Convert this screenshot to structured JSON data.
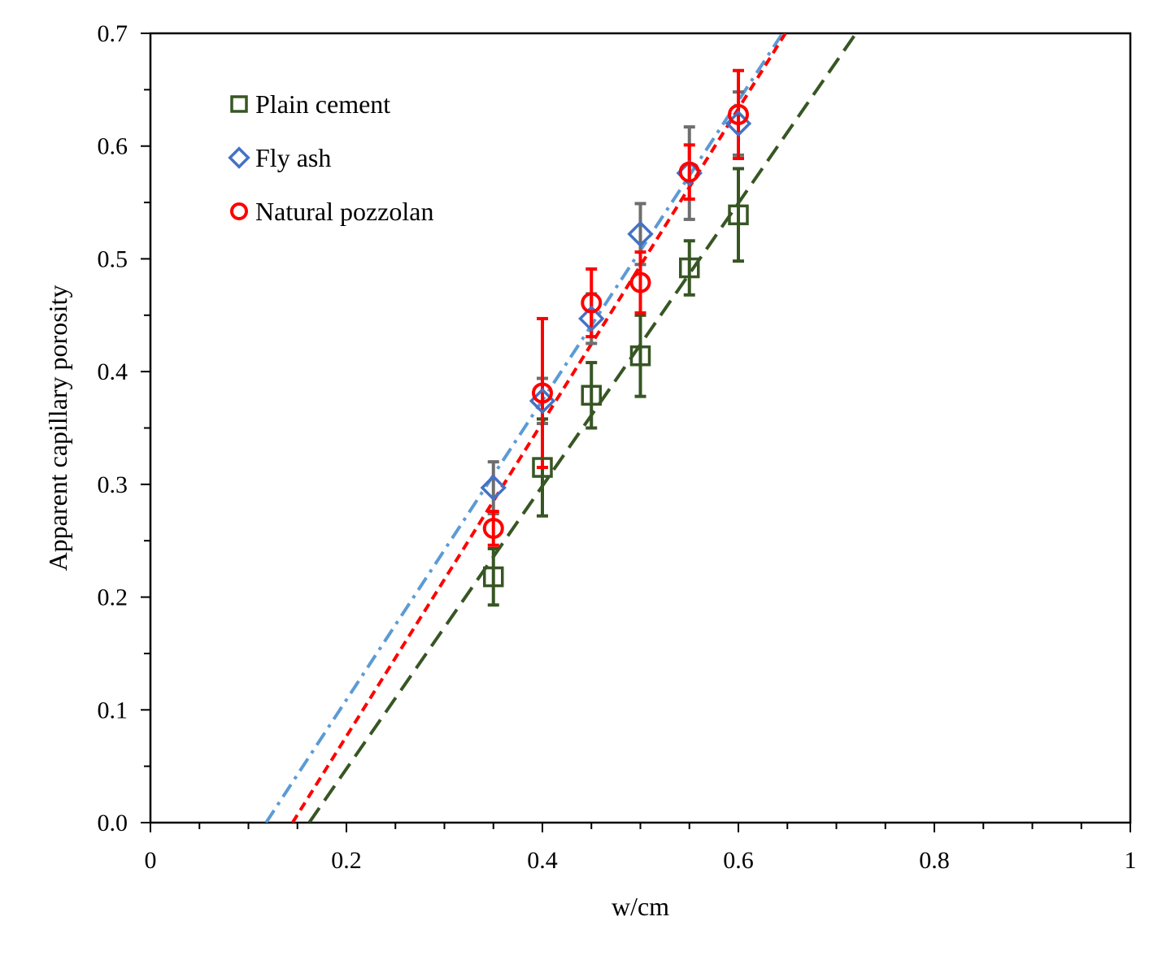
{
  "chart_data": {
    "type": "scatter",
    "title": "",
    "xlabel": "w/cm",
    "ylabel": "Apparent capillary porosity",
    "xlim": [
      0,
      1
    ],
    "ylim": [
      0,
      0.7
    ],
    "x_ticks": [
      0,
      0.2,
      0.4,
      0.6,
      0.8,
      1
    ],
    "x_tick_labels": [
      "0",
      "0.2",
      "0.4",
      "0.6",
      "0.8",
      "1"
    ],
    "y_ticks": [
      0,
      0.1,
      0.2,
      0.3,
      0.4,
      0.5,
      0.6,
      0.7
    ],
    "y_tick_labels": [
      "0.0",
      "0.1",
      "0.2",
      "0.3",
      "0.4",
      "0.5",
      "0.6",
      "0.7"
    ],
    "grid": false,
    "legend_position": "top-left",
    "series": [
      {
        "name": "Plain cement",
        "marker": "square",
        "color": "#375623",
        "x": [
          0.35,
          0.4,
          0.45,
          0.5,
          0.55,
          0.6
        ],
        "y": [
          0.218,
          0.315,
          0.379,
          0.414,
          0.492,
          0.539
        ],
        "error": [
          0.025,
          0.043,
          0.029,
          0.036,
          0.024,
          0.041
        ],
        "trendline": {
          "x": [
            0.162,
            0.72
          ],
          "y": [
            0.0,
            0.7
          ],
          "style": "dashed"
        }
      },
      {
        "name": "Fly ash",
        "marker": "diamond",
        "color": "#4472C4",
        "error_color": "#6E6E6E",
        "trend_color": "#5B9BD5",
        "x": [
          0.35,
          0.4,
          0.45,
          0.5,
          0.55,
          0.6
        ],
        "y": [
          0.297,
          0.374,
          0.447,
          0.522,
          0.576,
          0.62
        ],
        "error": [
          0.023,
          0.02,
          0.022,
          0.027,
          0.041,
          0.028
        ],
        "trendline": {
          "x": [
            0.118,
            0.645
          ],
          "y": [
            0.0,
            0.7
          ],
          "style": "dash-dot"
        }
      },
      {
        "name": "Natural pozzolan",
        "marker": "circle",
        "color": "#FF0000",
        "x": [
          0.35,
          0.4,
          0.45,
          0.5,
          0.55,
          0.6
        ],
        "y": [
          0.261,
          0.381,
          0.461,
          0.479,
          0.577,
          0.628
        ],
        "error": [
          0.015,
          0.066,
          0.03,
          0.027,
          0.024,
          0.039
        ],
        "trendline": {
          "x": [
            0.145,
            0.648
          ],
          "y": [
            0.0,
            0.7
          ],
          "style": "dotted-dash"
        }
      }
    ]
  }
}
